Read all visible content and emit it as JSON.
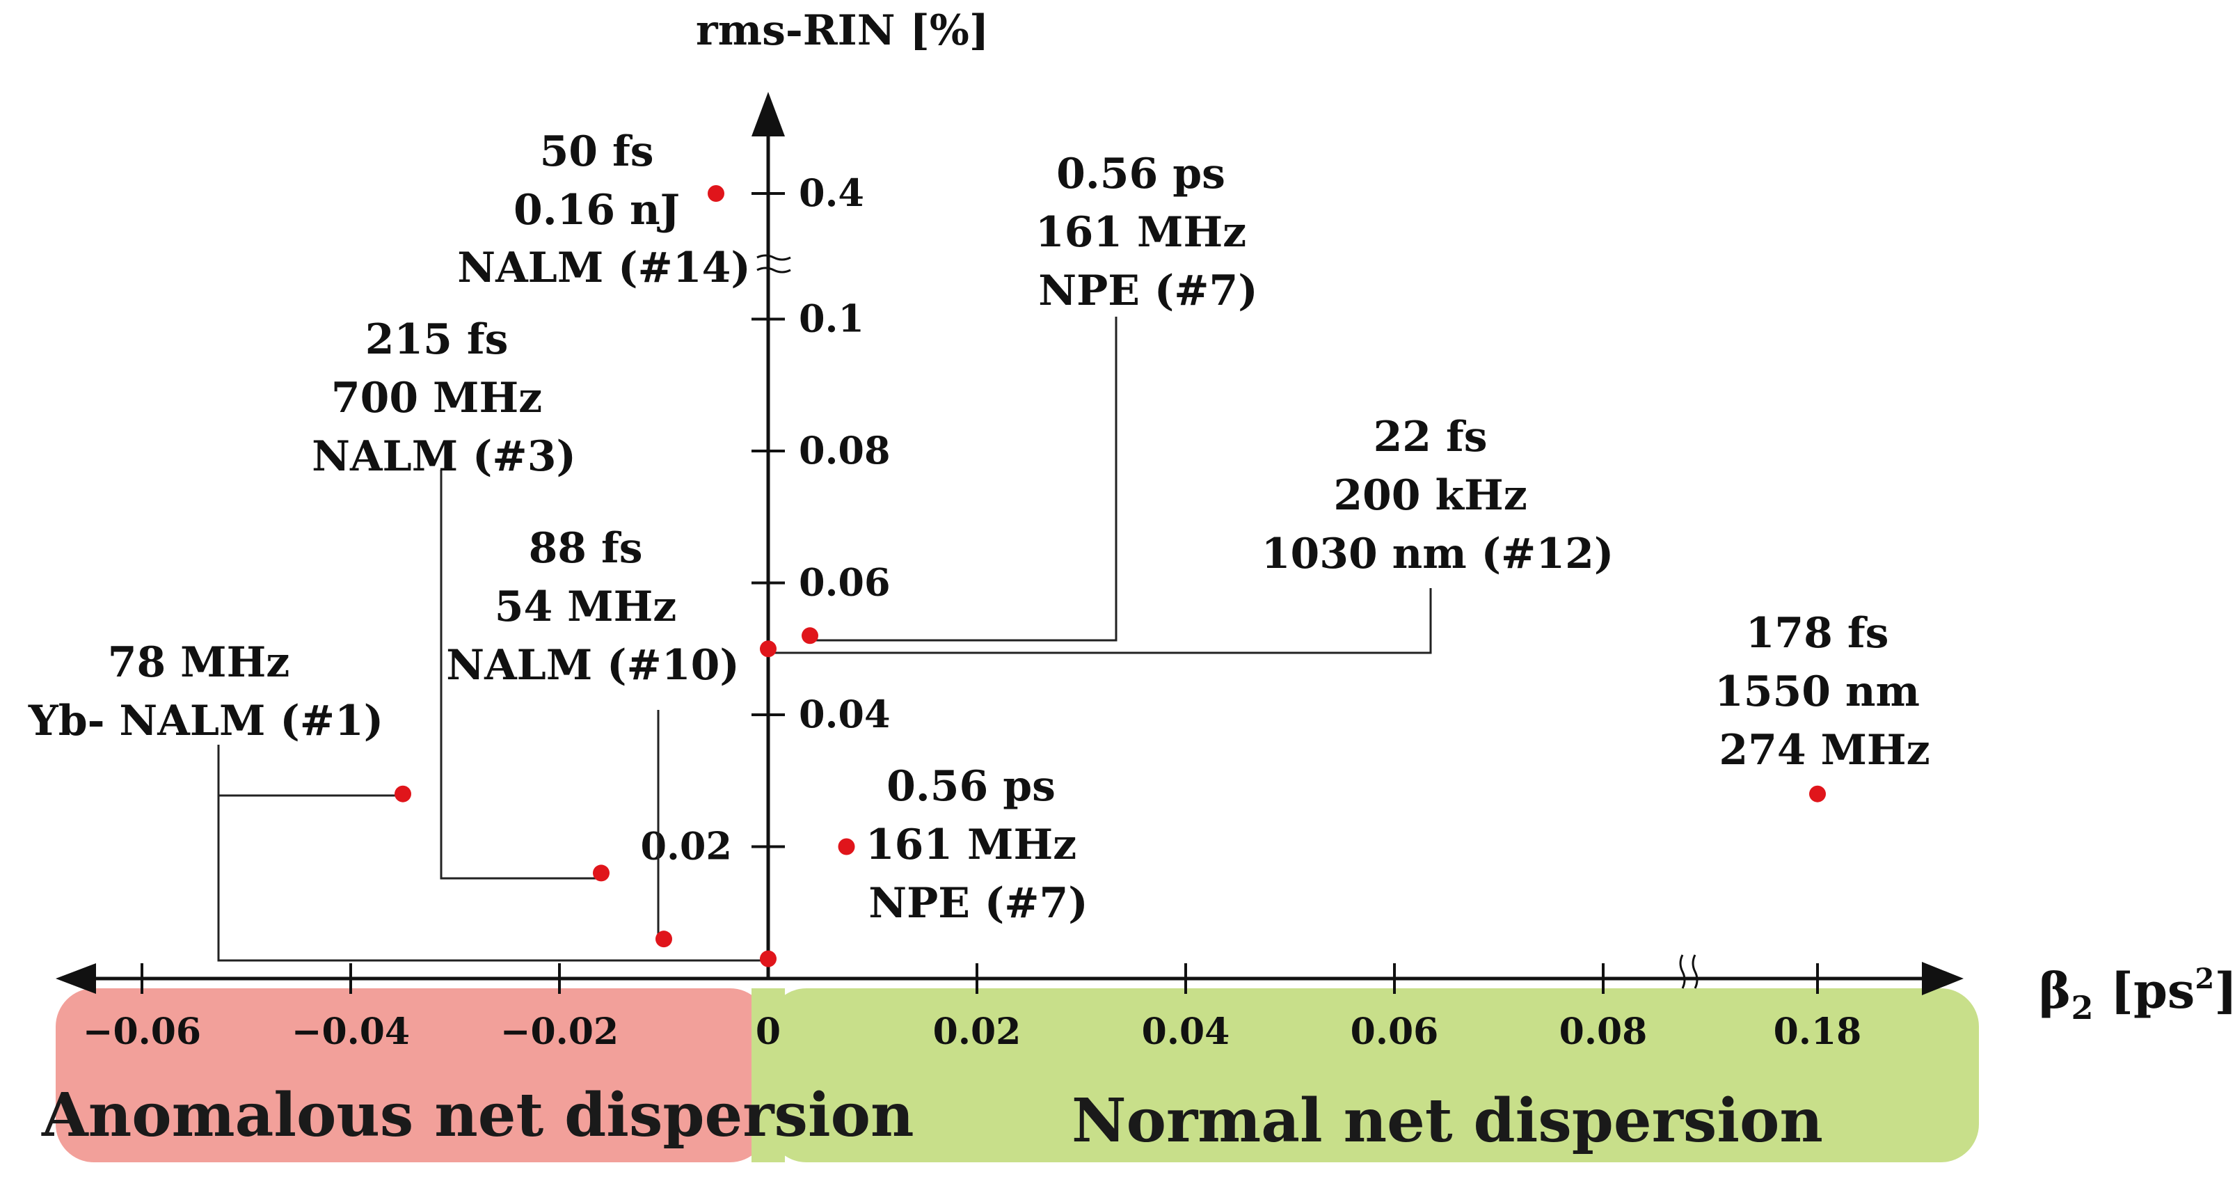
{
  "chart_data": {
    "type": "scatter",
    "title": "",
    "ylabel": "rms-RIN [%]",
    "xlabel_base": "β",
    "xlabel_sub": "2",
    "xlabel_unit_open": " [ps",
    "xlabel_unit_sup": "2",
    "xlabel_unit_close": "]",
    "x_ticks": [
      "−0.06",
      "−0.04",
      "−0.02",
      "0",
      "0.02",
      "0.04",
      "0.06",
      "0.08",
      "0.18"
    ],
    "y_ticks": [
      "0.02",
      "0.04",
      "0.06",
      "0.08",
      "0.1",
      "0.4"
    ],
    "x_axis_break": "between 0.08 and 0.18",
    "y_axis_break": "between 0.1 and 0.4",
    "regions": [
      {
        "name": "Anomalous net dispersion",
        "x_range": [
          -0.068,
          0
        ],
        "color": "#f2a09a"
      },
      {
        "name": "Normal net dispersion",
        "x_range": [
          0,
          0.19
        ],
        "color": "#c8df8a"
      }
    ],
    "point_color": "#e0151b",
    "points": [
      {
        "x": -0.005,
        "y": 0.4,
        "label": [
          "50 fs",
          "0.16 nJ",
          "NALM (#14)"
        ]
      },
      {
        "x": -0.035,
        "y": 0.028,
        "label": [
          "78 MHz",
          "Yb- NALM (#1)"
        ]
      },
      {
        "x": -0.016,
        "y": 0.016,
        "label": [
          "215 fs",
          "700 MHz",
          "NALM (#3)"
        ]
      },
      {
        "x": -0.01,
        "y": 0.006,
        "label": [
          "88 fs",
          "54 MHz",
          "NALM (#10)"
        ]
      },
      {
        "x": 0.0,
        "y": 0.003,
        "label": [
          "78 MHz",
          "Yb- NALM (#1)"
        ]
      },
      {
        "x": 0.0,
        "y": 0.05,
        "label": [
          "22 fs",
          "200 kHz",
          "1030 nm (#12)"
        ]
      },
      {
        "x": 0.004,
        "y": 0.052,
        "label": [
          "0.56 ps",
          "161 MHz",
          "NPE (#7)"
        ]
      },
      {
        "x": 0.0075,
        "y": 0.02,
        "label": [
          "0.56 ps",
          "161 MHz",
          "NPE (#7)"
        ]
      },
      {
        "x": 0.18,
        "y": 0.028,
        "label": [
          "178 fs",
          "1550 nm",
          "274 MHz"
        ]
      }
    ]
  }
}
